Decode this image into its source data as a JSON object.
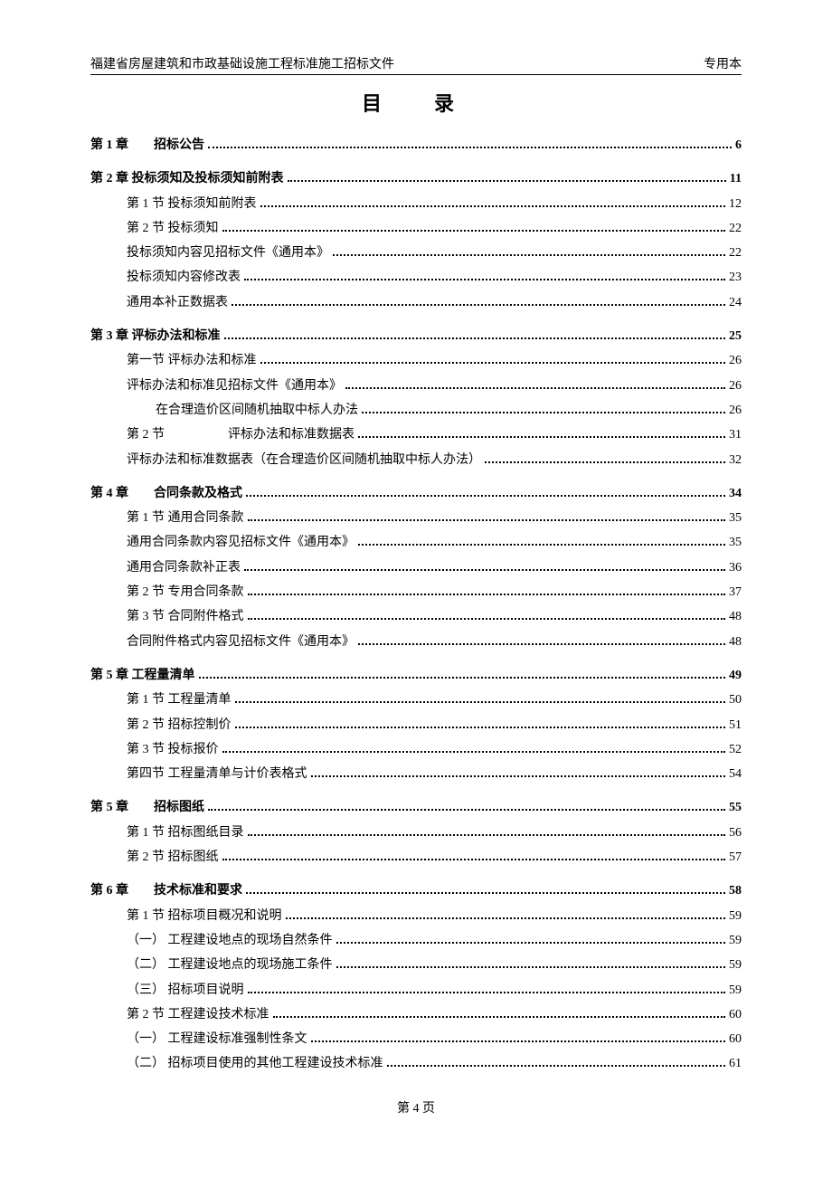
{
  "header_left": "福建省房屋建筑和市政基础设施工程标准施工招标文件",
  "header_right": "专用本",
  "title": "目　录",
  "footer": "第 4 页",
  "toc": [
    {
      "level": 0,
      "bold": true,
      "gap": false,
      "text": "第 1 章　　招标公告",
      "page": "6"
    },
    {
      "level": 0,
      "bold": true,
      "gap": true,
      "text": "第 2 章  投标须知及投标须知前附表",
      "page": "11"
    },
    {
      "level": 1,
      "bold": false,
      "gap": false,
      "text": "第 1 节  投标须知前附表",
      "page": "12"
    },
    {
      "level": 1,
      "bold": false,
      "gap": false,
      "text": "第 2 节  投标须知",
      "page": "22"
    },
    {
      "level": 1,
      "bold": false,
      "gap": false,
      "text": "投标须知内容见招标文件《通用本》",
      "page": "22"
    },
    {
      "level": 1,
      "bold": false,
      "gap": false,
      "text": "投标须知内容修改表",
      "page": "23"
    },
    {
      "level": 1,
      "bold": false,
      "gap": false,
      "text": "通用本补正数据表",
      "page": "24"
    },
    {
      "level": 0,
      "bold": true,
      "gap": true,
      "text": "第 3 章  评标办法和标准",
      "page": "25"
    },
    {
      "level": 1,
      "bold": false,
      "gap": false,
      "text": "第一节  评标办法和标准",
      "page": "26"
    },
    {
      "level": 1,
      "bold": false,
      "gap": false,
      "text": "评标办法和标准见招标文件《通用本》",
      "page": "26"
    },
    {
      "level": 2,
      "bold": false,
      "gap": false,
      "text": "在合理造价区间随机抽取中标人办法",
      "page": "26"
    },
    {
      "level": 1,
      "bold": false,
      "gap": false,
      "text": "第 2 节　　　　　评标办法和标准数据表",
      "page": "31"
    },
    {
      "level": 1,
      "bold": false,
      "gap": false,
      "text": "评标办法和标准数据表（在合理造价区间随机抽取中标人办法）",
      "page": "32"
    },
    {
      "level": 0,
      "bold": true,
      "gap": true,
      "text": "第 4 章　　合同条款及格式",
      "page": "34"
    },
    {
      "level": 1,
      "bold": false,
      "gap": false,
      "text": "第 1 节  通用合同条款",
      "page": "35"
    },
    {
      "level": 1,
      "bold": false,
      "gap": false,
      "text": "通用合同条款内容见招标文件《通用本》",
      "page": "35"
    },
    {
      "level": 1,
      "bold": false,
      "gap": false,
      "text": "通用合同条款补正表",
      "page": "36"
    },
    {
      "level": 1,
      "bold": false,
      "gap": false,
      "text": "第 2 节  专用合同条款",
      "page": "37"
    },
    {
      "level": 1,
      "bold": false,
      "gap": false,
      "text": "第 3 节  合同附件格式",
      "page": "48"
    },
    {
      "level": 1,
      "bold": false,
      "gap": false,
      "text": "合同附件格式内容见招标文件《通用本》",
      "page": "48"
    },
    {
      "level": 0,
      "bold": true,
      "gap": true,
      "text": "第 5 章  工程量清单",
      "page": "49"
    },
    {
      "level": 1,
      "bold": false,
      "gap": false,
      "text": "第 1 节  工程量清单",
      "page": "50"
    },
    {
      "level": 1,
      "bold": false,
      "gap": false,
      "text": "第 2 节  招标控制价",
      "page": "51"
    },
    {
      "level": 1,
      "bold": false,
      "gap": false,
      "text": "第 3 节  投标报价",
      "page": "52"
    },
    {
      "level": 1,
      "bold": false,
      "gap": false,
      "text": "第四节  工程量清单与计价表格式",
      "page": "54"
    },
    {
      "level": 0,
      "bold": true,
      "gap": true,
      "text": "第 5 章　　招标图纸",
      "page": "55"
    },
    {
      "level": 1,
      "bold": false,
      "gap": false,
      "text": "第 1 节  招标图纸目录",
      "page": "56"
    },
    {
      "level": 1,
      "bold": false,
      "gap": false,
      "text": "第 2 节  招标图纸",
      "page": "57"
    },
    {
      "level": 0,
      "bold": true,
      "gap": true,
      "text": "第 6 章　　技术标准和要求",
      "page": "58"
    },
    {
      "level": 1,
      "bold": false,
      "gap": false,
      "text": "第 1 节  招标项目概况和说明",
      "page": "59"
    },
    {
      "level": 1,
      "bold": false,
      "gap": false,
      "text": "（一）  工程建设地点的现场自然条件",
      "page": "59"
    },
    {
      "level": 1,
      "bold": false,
      "gap": false,
      "text": "（二）  工程建设地点的现场施工条件",
      "page": "59"
    },
    {
      "level": 1,
      "bold": false,
      "gap": false,
      "text": "（三）  招标项目说明",
      "page": "59"
    },
    {
      "level": 1,
      "bold": false,
      "gap": false,
      "text": "第 2 节  工程建设技术标准",
      "page": "60"
    },
    {
      "level": 1,
      "bold": false,
      "gap": false,
      "text": "（一）  工程建设标准强制性条文",
      "page": "60"
    },
    {
      "level": 1,
      "bold": false,
      "gap": false,
      "text": "（二）  招标项目使用的其他工程建设技术标准",
      "page": "61"
    }
  ]
}
